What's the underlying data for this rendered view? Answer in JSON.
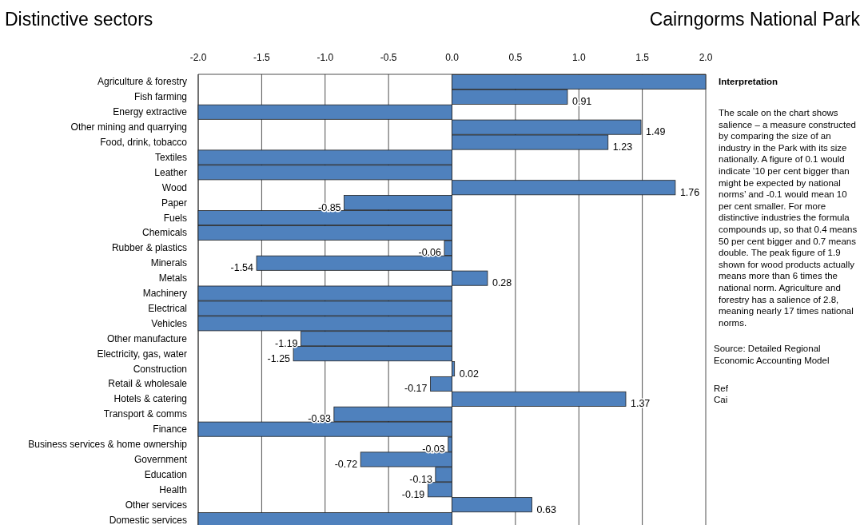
{
  "chart_data": {
    "type": "bar",
    "orientation": "horizontal",
    "title": "Distinctive sectors",
    "subtitle": "Cairngorms National Park",
    "categories": [
      "Agriculture & forestry",
      "Fish farming",
      "Energy extractive",
      "Other mining and quarrying",
      "Food, drink, tobacco",
      "Textiles",
      "Leather",
      "Wood",
      "Paper",
      "Fuels",
      "Chemicals",
      "Rubber & plastics",
      "Minerals ",
      "Metals",
      "Machinery ",
      "Electrical",
      "Vehicles",
      "Other manufacture",
      "Electricity, gas, water",
      "Construction",
      "Retail & wholesale",
      "Hotels & catering",
      "Transport & comms",
      "Finance",
      "Business services & home ownership",
      "Government",
      "Education",
      "Health",
      "Other services ",
      "Domestic services"
    ],
    "values": [
      2.0,
      0.91,
      -2.0,
      1.49,
      1.23,
      -2.0,
      -2.0,
      1.76,
      -0.85,
      -2.0,
      -2.0,
      -0.06,
      -1.54,
      0.28,
      -2.0,
      -2.0,
      -2.0,
      -1.19,
      -1.25,
      0.02,
      -0.17,
      1.37,
      -0.93,
      -2.0,
      -0.03,
      -0.72,
      -0.13,
      -0.19,
      0.63,
      -2.0
    ],
    "value_labels": [
      null,
      "0.91",
      null,
      "1.49",
      "1.23",
      null,
      null,
      "1.76",
      "-0.85",
      null,
      null,
      "-0.06",
      "-1.54",
      "0.28",
      null,
      null,
      null,
      "-1.19",
      "-1.25",
      "0.02",
      "-0.17",
      "1.37",
      "-0.93",
      null,
      "-0.03",
      "-0.72",
      "-0.13",
      "-0.19",
      "0.63",
      null
    ],
    "color": "#4f81bd",
    "xlim": [
      -2,
      2
    ],
    "xticks": [
      {
        "value": -2,
        "label": "-2.0"
      },
      {
        "value": -1.5,
        "label": "-1.5"
      },
      {
        "value": -1,
        "label": "-1.0"
      },
      {
        "value": -0.5,
        "label": "-0.5"
      },
      {
        "value": 0,
        "label": "0.0"
      },
      {
        "value": 0.5,
        "label": "0.5"
      },
      {
        "value": 1,
        "label": "1.0"
      },
      {
        "value": 1.5,
        "label": "1.5"
      },
      {
        "value": 2,
        "label": "2.0"
      }
    ],
    "grid": "x",
    "annotations": [
      "Interpretation",
      "The scale on the chart shows salience – a measure constructed by comparing the size of an industry in the Park with its size nationally.  A figure of 0.1 would indicate ’10 per cent bigger than might be expected by national norms’ and -0.1 would mean 10 per cent smaller.  For more distinctive industries the formula compounds up, so that 0.4 means 50 per cent bigger and 0.7 means double.  The peak figure of 1.9 shown for wood products actually means more than 6 times the national norm.  Agriculture and forestry has a salience of 2.8, meaning nearly 17 times national norms.",
      "Source: Detailed Regional Economic Accounting Model",
      "Ref",
      "Cai"
    ]
  }
}
